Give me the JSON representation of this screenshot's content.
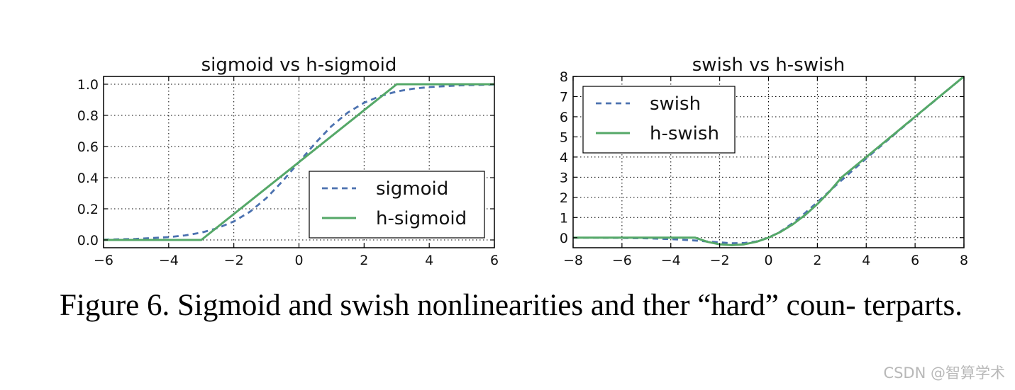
{
  "chart_data": [
    {
      "type": "line",
      "title": "sigmoid vs h-sigmoid",
      "xlim": [
        -6,
        6
      ],
      "ylim": [
        -0.05,
        1.05
      ],
      "xticks": [
        -6,
        -4,
        -2,
        0,
        2,
        4,
        6
      ],
      "yticks": [
        0.0,
        0.2,
        0.4,
        0.6,
        0.8,
        1.0
      ],
      "xtick_labels": [
        "−6",
        "−4",
        "−2",
        "0",
        "2",
        "4",
        "6"
      ],
      "ytick_labels": [
        "0.0",
        "0.2",
        "0.4",
        "0.6",
        "0.8",
        "1.0"
      ],
      "grid": true,
      "legend_position": "lower-right",
      "series": [
        {
          "name": "sigmoid",
          "style": "dashed",
          "color": "#4c72b0",
          "x": [
            -6,
            -5,
            -4,
            -3.5,
            -3,
            -2.5,
            -2,
            -1.5,
            -1,
            -0.5,
            0,
            0.5,
            1,
            1.5,
            2,
            2.5,
            3,
            3.5,
            4,
            5,
            6
          ],
          "y": [
            0.002,
            0.007,
            0.018,
            0.029,
            0.047,
            0.076,
            0.119,
            0.182,
            0.269,
            0.378,
            0.5,
            0.622,
            0.731,
            0.818,
            0.881,
            0.924,
            0.953,
            0.971,
            0.982,
            0.993,
            0.998
          ]
        },
        {
          "name": "h-sigmoid",
          "style": "solid",
          "color": "#55a868",
          "x": [
            -6,
            -3,
            3,
            6
          ],
          "y": [
            0,
            0,
            1,
            1
          ]
        }
      ]
    },
    {
      "type": "line",
      "title": "swish vs h-swish",
      "xlim": [
        -8,
        8
      ],
      "ylim": [
        -0.5,
        8
      ],
      "xticks": [
        -8,
        -6,
        -4,
        -2,
        0,
        2,
        4,
        6,
        8
      ],
      "yticks": [
        0,
        1,
        2,
        3,
        4,
        5,
        6,
        7,
        8
      ],
      "xtick_labels": [
        "−8",
        "−6",
        "−4",
        "−2",
        "0",
        "2",
        "4",
        "6",
        "8"
      ],
      "ytick_labels": [
        "0",
        "1",
        "2",
        "3",
        "4",
        "5",
        "6",
        "7",
        "8"
      ],
      "grid": true,
      "legend_position": "upper-left",
      "series": [
        {
          "name": "swish",
          "style": "dashed",
          "color": "#4c72b0",
          "x": [
            -8,
            -7,
            -6,
            -5,
            -4,
            -3,
            -2.5,
            -2,
            -1.5,
            -1,
            -0.5,
            0,
            0.5,
            1,
            1.5,
            2,
            2.5,
            3,
            3.5,
            4,
            5,
            6,
            7,
            8
          ],
          "y": [
            -0.003,
            -0.006,
            -0.015,
            -0.033,
            -0.072,
            -0.142,
            -0.19,
            -0.238,
            -0.274,
            -0.269,
            -0.189,
            0,
            0.311,
            0.731,
            1.227,
            1.762,
            2.31,
            2.858,
            3.395,
            3.928,
            4.967,
            5.985,
            6.994,
            7.997
          ]
        },
        {
          "name": "h-swish",
          "style": "solid",
          "color": "#55a868",
          "x": [
            -8,
            -3,
            -2.5,
            -2,
            -1.5,
            -1,
            -0.5,
            0,
            0.5,
            1,
            1.5,
            2,
            2.5,
            3,
            8
          ],
          "y": [
            0,
            0,
            -0.208,
            -0.333,
            -0.375,
            -0.333,
            -0.208,
            0,
            0.292,
            0.667,
            1.125,
            1.667,
            2.292,
            3,
            8
          ]
        }
      ]
    }
  ],
  "caption": "Figure 6. Sigmoid and swish nonlinearities and ther “hard” coun- terparts.",
  "watermark": "CSDN @智算学术"
}
